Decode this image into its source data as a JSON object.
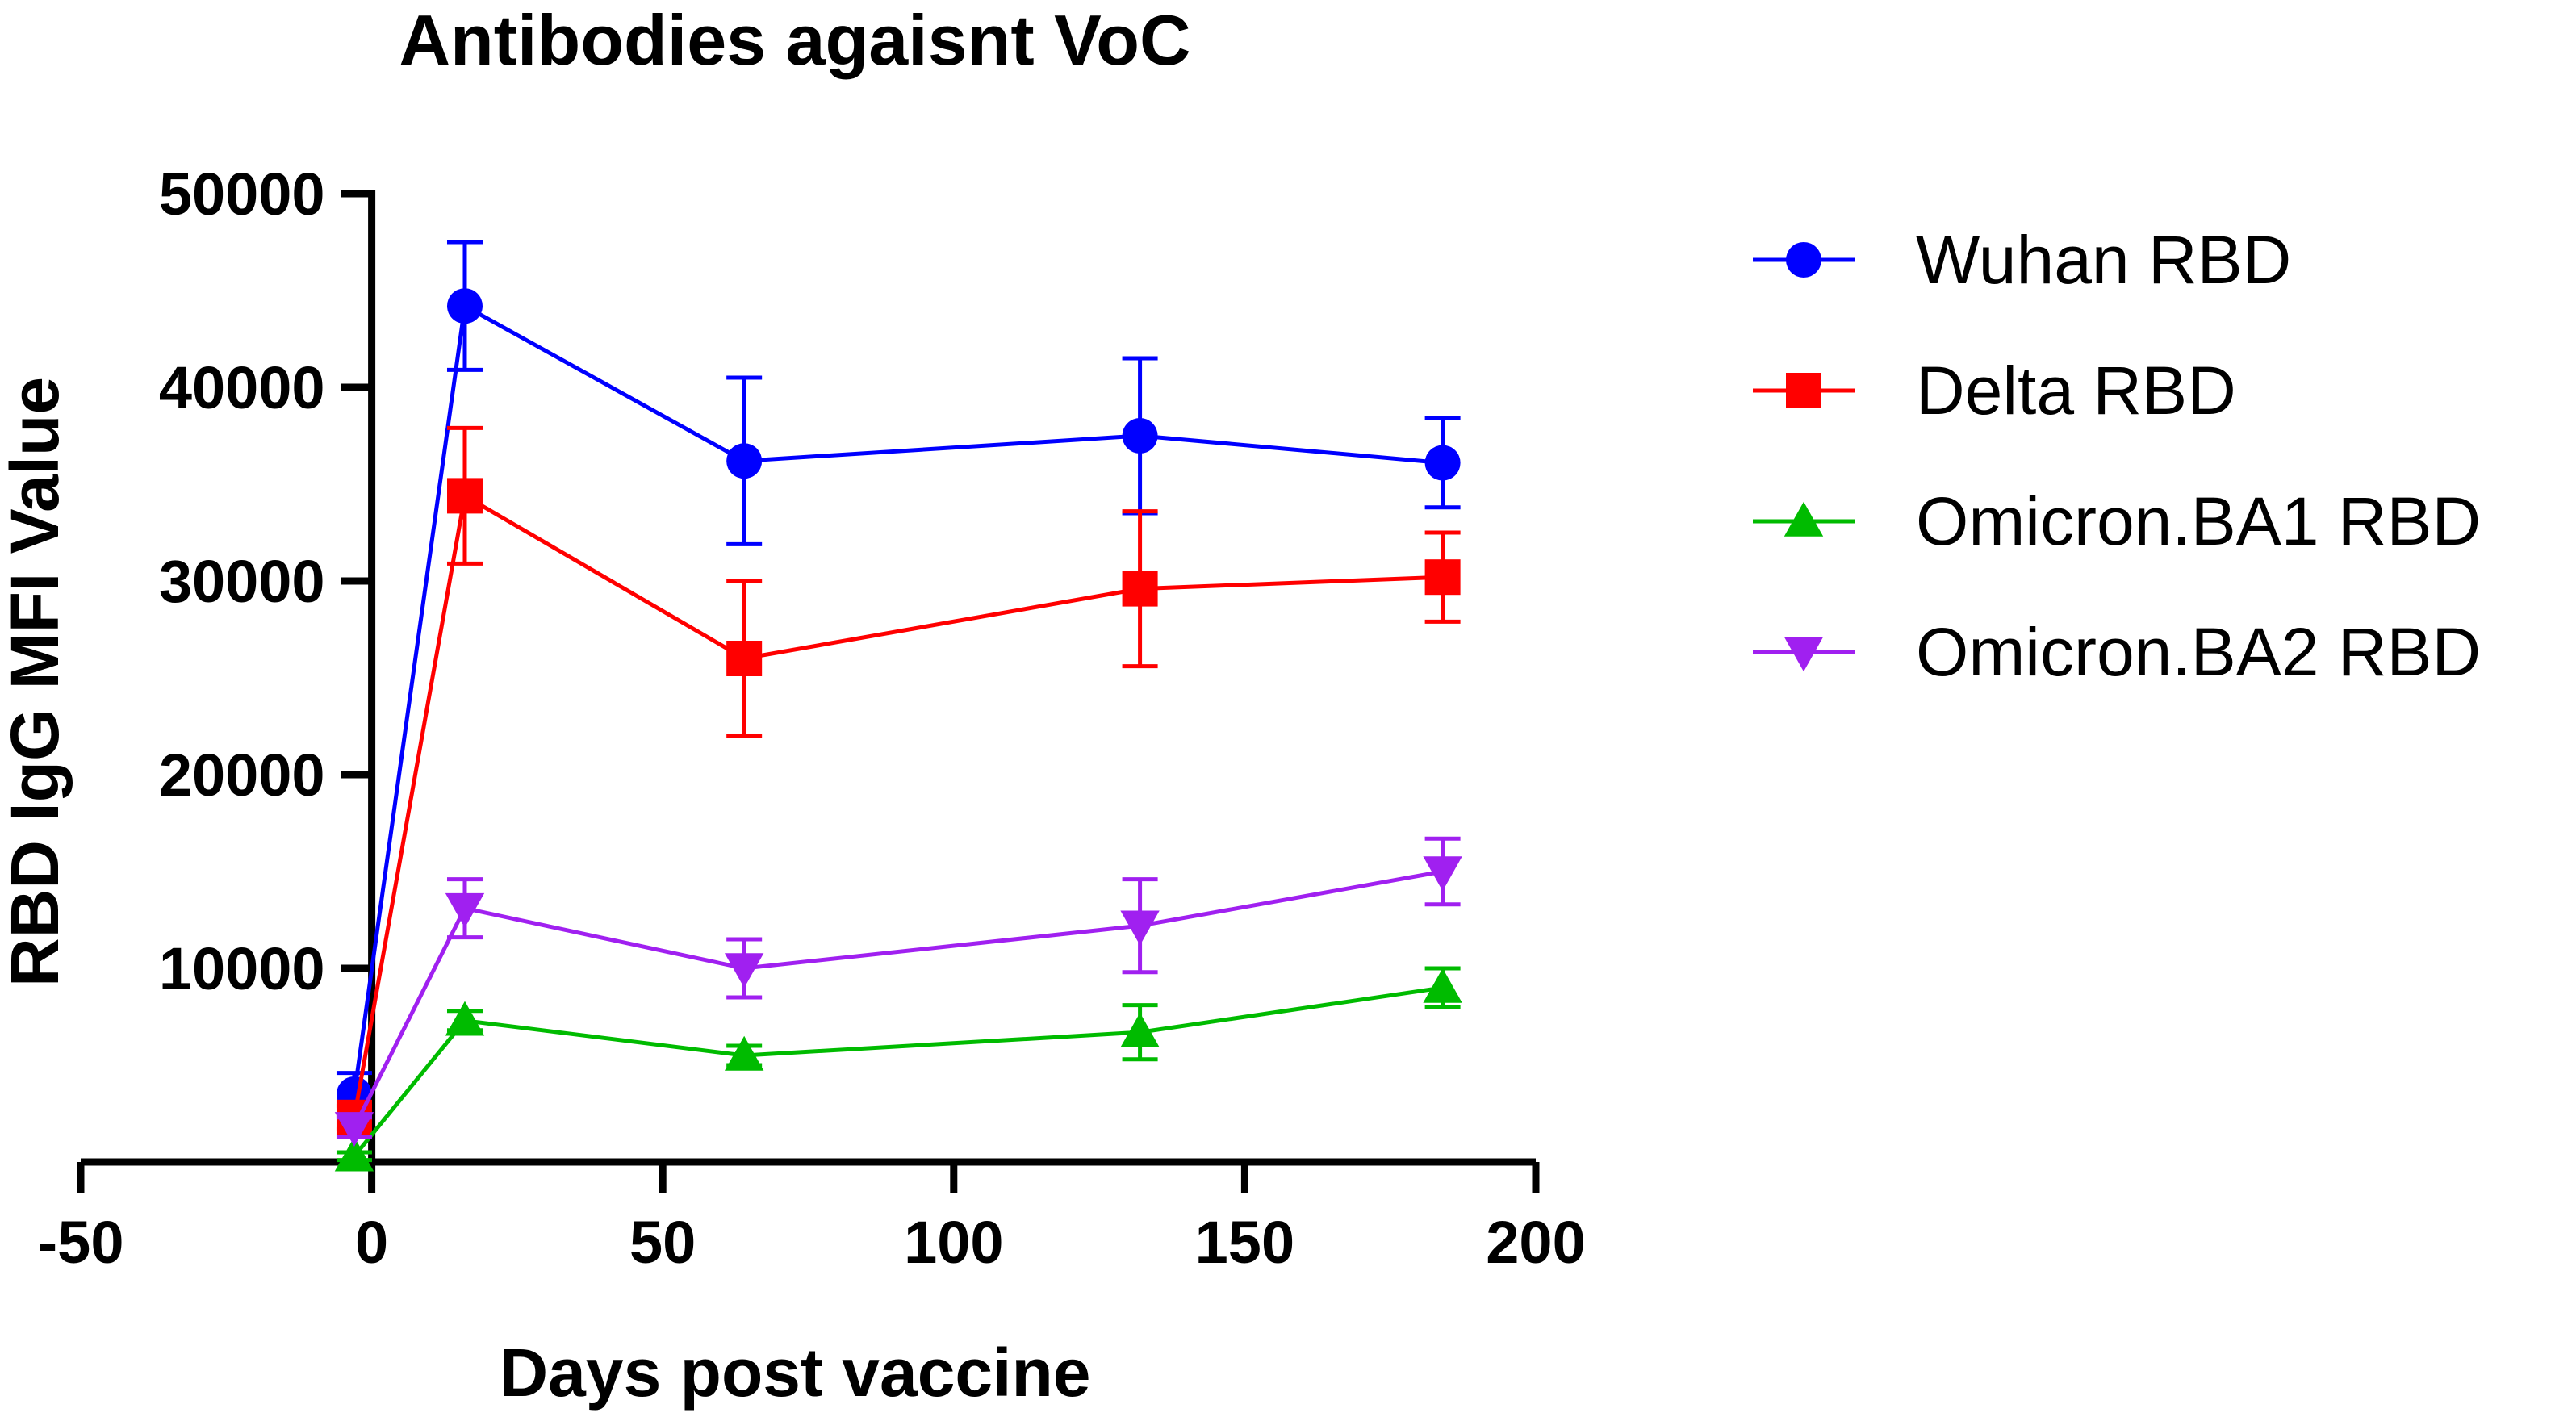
{
  "chart_data": {
    "type": "line",
    "title": "Antibodies agaisnt VoC",
    "xlabel": "Days post vaccine",
    "ylabel": "RBD IgG MFI Value",
    "xlim": [
      -50,
      200
    ],
    "ylim": [
      0,
      50000
    ],
    "xticks": [
      -50,
      0,
      50,
      100,
      150,
      200
    ],
    "yticks": [
      10000,
      20000,
      30000,
      40000,
      50000
    ],
    "x_tick_labels": [
      "-50",
      "0",
      "50",
      "100",
      "150",
      "200"
    ],
    "y_tick_labels": [
      "10000",
      "20000",
      "30000",
      "40000",
      "50000"
    ],
    "grid": false,
    "legend_position": "right",
    "series": [
      {
        "name": "Wuhan RBD",
        "color": "#0000ff",
        "marker": "circle",
        "x": [
          -3,
          16,
          64,
          132,
          184
        ],
        "values": [
          3500,
          44200,
          36200,
          37500,
          36100
        ],
        "err": [
          1100,
          3300,
          4300,
          4000,
          2300
        ]
      },
      {
        "name": "Delta RBD",
        "color": "#ff0000",
        "marker": "square",
        "x": [
          -3,
          16,
          64,
          132,
          184
        ],
        "values": [
          2300,
          34400,
          26000,
          29600,
          30200
        ],
        "err": [
          600,
          3500,
          4000,
          4000,
          2300
        ]
      },
      {
        "name": "Omicron.BA1 RBD",
        "color": "#00bb00",
        "marker": "triangle-up",
        "x": [
          -3,
          16,
          64,
          132,
          184
        ],
        "values": [
          300,
          7300,
          5500,
          6700,
          9000
        ],
        "err": [
          200,
          500,
          500,
          1400,
          1000
        ]
      },
      {
        "name": "Omicron.BA2 RBD",
        "color": "#a020f0",
        "marker": "triangle-down",
        "x": [
          -3,
          16,
          64,
          132,
          184
        ],
        "values": [
          1800,
          13100,
          10000,
          12200,
          15000
        ],
        "err": [
          500,
          1500,
          1500,
          2400,
          1700
        ]
      }
    ]
  }
}
